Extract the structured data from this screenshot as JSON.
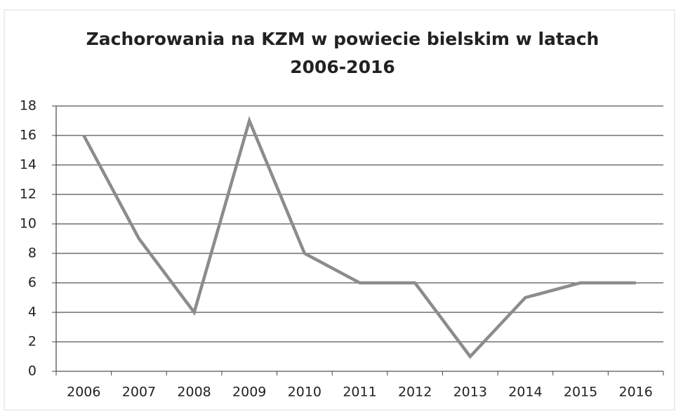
{
  "chart_data": {
    "type": "line",
    "title": [
      "Zachorowania na KZM w powiecie bielskim w latach",
      "2006-2016"
    ],
    "categories": [
      "2006",
      "2007",
      "2008",
      "2009",
      "2010",
      "2011",
      "2012",
      "2013",
      "2014",
      "2015",
      "2016"
    ],
    "values": [
      16,
      9,
      4,
      17,
      8,
      6,
      6,
      1,
      5,
      6,
      6
    ],
    "color": "#8c8c8c",
    "ylim": [
      0,
      18
    ],
    "yticks": [
      0,
      2,
      4,
      6,
      8,
      10,
      12,
      14,
      16,
      18
    ],
    "grid": true
  }
}
